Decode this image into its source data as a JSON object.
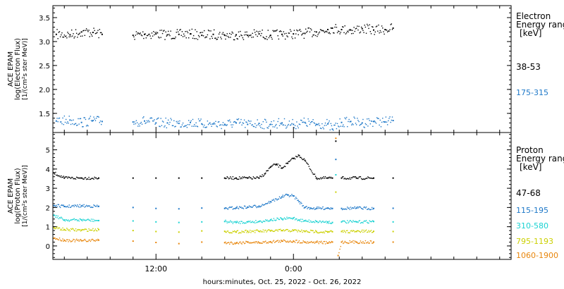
{
  "chart_data": [
    {
      "type": "scatter",
      "ylabel_lines": [
        "ACE EPAM",
        "log(Electron Flux)",
        "[1/(cm²s ster MeV)]"
      ],
      "ylim": [
        1.1,
        3.75
      ],
      "yticks": [
        1.5,
        2.0,
        2.5,
        3.0,
        3.5
      ],
      "legend_title": [
        "Electron",
        "Energy ranges",
        "[keV]"
      ],
      "series": [
        {
          "name": "38-53",
          "color": "#000000",
          "x": [
            0.3,
            1.5,
            2.5,
            3.5,
            4.3,
            7.0,
            8.0,
            9.0,
            10.0,
            11.0,
            12.0,
            13.0,
            14.0,
            15.0,
            16.0,
            17.0,
            18.0,
            19.0,
            20.0,
            21.0,
            22.0,
            23.0,
            24.0,
            24.4,
            25.2,
            26.0,
            27.0,
            28.0,
            29.0,
            29.7
          ],
          "y": [
            3.15,
            3.14,
            3.2,
            3.19,
            3.15,
            3.13,
            3.15,
            3.16,
            3.14,
            3.15,
            3.16,
            3.13,
            3.15,
            3.13,
            3.14,
            3.13,
            3.16,
            3.13,
            3.15,
            3.16,
            3.17,
            3.2,
            3.25,
            3.28,
            3.25,
            3.24,
            3.27,
            3.24,
            3.25,
            3.28
          ]
        },
        {
          "name": "175-315",
          "color": "#1e78c8",
          "x": [
            0.3,
            1.5,
            2.5,
            3.5,
            4.3,
            7.0,
            8.0,
            9.0,
            10.0,
            11.0,
            12.0,
            13.0,
            14.0,
            15.0,
            16.0,
            17.0,
            18.0,
            19.0,
            20.0,
            21.0,
            22.0,
            23.0,
            24.0,
            24.4,
            25.2,
            26.0,
            27.0,
            28.0,
            29.0,
            29.7
          ],
          "y": [
            1.34,
            1.36,
            1.31,
            1.35,
            1.33,
            1.32,
            1.34,
            1.3,
            1.3,
            1.29,
            1.31,
            1.28,
            1.28,
            1.27,
            1.3,
            1.27,
            1.29,
            1.27,
            1.3,
            1.27,
            1.31,
            1.27,
            1.28,
            1.17,
            1.31,
            1.33,
            1.3,
            1.33,
            1.32,
            1.35
          ]
        }
      ]
    },
    {
      "type": "scatter",
      "ylabel_lines": [
        "ACE EPAM",
        "log(Proton Flux)",
        "[1/(cm²s ster MeV)]"
      ],
      "ylim": [
        -0.7,
        5.9
      ],
      "yticks": [
        0,
        1,
        2,
        3,
        4,
        5
      ],
      "legend_title": [
        "Proton",
        "Energy ranges",
        "[keV]"
      ],
      "series": [
        {
          "name": "47-68",
          "color": "#000000",
          "x": [
            0.1,
            1.0,
            2.5,
            4.0,
            7.0,
            9.0,
            11.0,
            13.0,
            15.0,
            16.0,
            17.0,
            18.0,
            18.5,
            19.0,
            19.5,
            20.0,
            20.5,
            21.0,
            21.5,
            22.0,
            23.0,
            24.0,
            24.4,
            24.7,
            25.2,
            26.5,
            28.0,
            29.7
          ],
          "y": [
            3.8,
            3.53,
            3.53,
            3.53,
            3.53,
            3.53,
            3.53,
            3.53,
            3.53,
            3.53,
            3.53,
            3.53,
            3.75,
            4.1,
            4.25,
            4.05,
            4.3,
            4.55,
            4.7,
            4.45,
            3.53,
            3.53,
            3.53,
            5.45,
            3.53,
            3.53,
            3.53,
            3.53
          ]
        },
        {
          "name": "115-195",
          "color": "#1e78c8",
          "x": [
            0.1,
            1.0,
            2.5,
            4.0,
            7.0,
            9.0,
            11.0,
            13.0,
            15.0,
            16.0,
            17.0,
            18.0,
            19.0,
            20.0,
            20.5,
            21.0,
            21.5,
            22.0,
            22.5,
            23.0,
            24.0,
            24.4,
            24.7,
            25.2,
            26.5,
            28.0,
            29.7
          ],
          "y": [
            2.1,
            2.05,
            2.08,
            2.06,
            2.0,
            1.95,
            1.93,
            1.97,
            1.95,
            1.98,
            2.02,
            2.07,
            2.3,
            2.55,
            2.65,
            2.6,
            2.3,
            2.0,
            1.97,
            1.95,
            1.97,
            1.95,
            4.5,
            1.95,
            1.97,
            1.95,
            1.96
          ]
        },
        {
          "name": "310-580",
          "color": "#19d2d2",
          "x": [
            0.1,
            1.0,
            2.5,
            4.0,
            7.0,
            9.0,
            11.0,
            13.0,
            15.0,
            16.0,
            17.0,
            18.0,
            19.0,
            20.0,
            21.0,
            21.5,
            22.0,
            23.0,
            24.0,
            24.4,
            24.7,
            25.2,
            26.5,
            28.0,
            29.7
          ],
          "y": [
            1.6,
            1.35,
            1.35,
            1.32,
            1.3,
            1.25,
            1.22,
            1.25,
            1.27,
            1.22,
            1.25,
            1.27,
            1.35,
            1.4,
            1.45,
            1.35,
            1.3,
            1.27,
            1.25,
            1.22,
            3.7,
            1.25,
            1.25,
            1.27,
            1.25
          ]
        },
        {
          "name": "795-1193",
          "color": "#cbd000",
          "x": [
            0.1,
            1.0,
            2.5,
            4.0,
            7.0,
            9.0,
            11.0,
            13.0,
            15.0,
            16.0,
            17.0,
            18.0,
            19.0,
            20.0,
            21.0,
            22.0,
            23.0,
            24.0,
            24.4,
            24.7,
            25.2,
            26.5,
            28.0,
            29.7
          ],
          "y": [
            0.95,
            0.85,
            0.82,
            0.85,
            0.8,
            0.75,
            0.72,
            0.78,
            0.76,
            0.72,
            0.77,
            0.76,
            0.78,
            0.8,
            0.8,
            0.75,
            0.75,
            0.72,
            0.74,
            2.8,
            0.75,
            0.75,
            0.76,
            0.75
          ]
        },
        {
          "name": "1060-1900",
          "color": "#e8860c",
          "x": [
            0.1,
            1.0,
            2.5,
            4.0,
            7.0,
            9.0,
            11.0,
            13.0,
            15.0,
            16.0,
            17.0,
            18.0,
            19.0,
            20.0,
            21.0,
            22.0,
            23.0,
            24.0,
            24.4,
            24.7,
            24.9,
            25.2,
            26.5,
            28.0,
            29.7
          ],
          "y": [
            0.4,
            0.3,
            0.27,
            0.3,
            0.25,
            0.18,
            0.12,
            0.2,
            0.17,
            0.15,
            0.2,
            0.17,
            0.22,
            0.25,
            0.25,
            0.2,
            0.2,
            0.15,
            0.2,
            5.6,
            -0.5,
            0.2,
            0.2,
            0.2,
            0.2
          ]
        }
      ]
    }
  ],
  "x_axis": {
    "xlim": [
      0,
      40
    ],
    "major_ticks": [
      9,
      21
    ],
    "major_labels": [
      "12:00",
      "0:00"
    ],
    "minor_ticks": [
      1,
      3,
      5,
      7,
      11,
      13,
      15,
      17,
      19,
      23,
      25,
      27,
      29,
      31,
      33,
      35,
      37,
      39
    ],
    "xlabel": "hours:minutes, Oct. 25, 2022 - Oct. 26, 2022"
  }
}
